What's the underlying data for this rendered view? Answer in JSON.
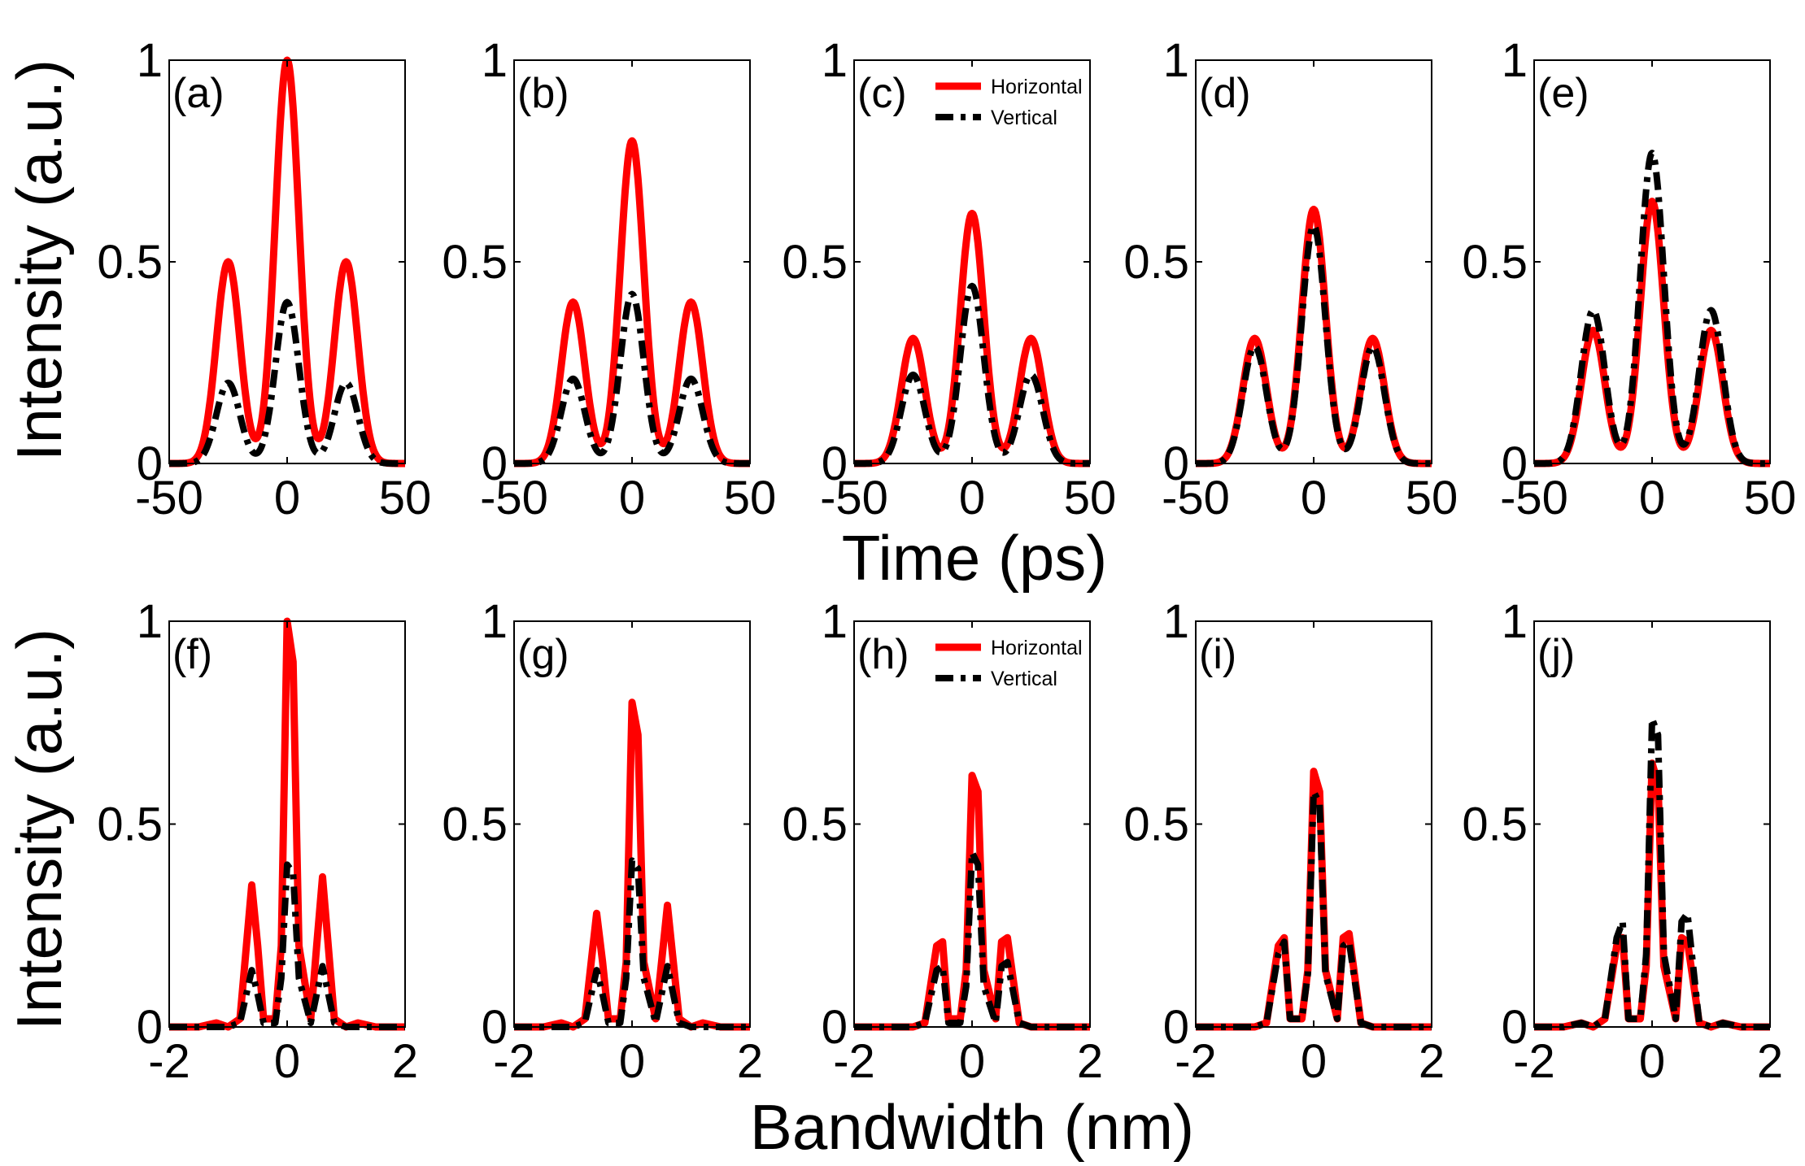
{
  "figure": {
    "ylabel": "Intensity (a.u.)",
    "xlabel_top": "Time (ps)",
    "xlabel_bottom": "Bandwidth (nm)",
    "legend": {
      "horizontal": "Horizontal",
      "vertical": "Vertical"
    },
    "colors": {
      "horizontal": "#ff0000",
      "vertical": "#000000"
    }
  },
  "chart_data": [
    {
      "type": "line",
      "panel": "(a)",
      "row": "top",
      "xlim": [
        -50,
        50
      ],
      "ylim": [
        0,
        1
      ],
      "xticks": [
        -50,
        0,
        50
      ],
      "yticks": [
        0,
        0.5,
        1
      ],
      "peaks_x": [
        -25,
        0,
        25
      ],
      "peak_width": 5,
      "series": [
        {
          "name": "Horizontal",
          "peak_values": [
            0.5,
            1.0,
            0.5
          ]
        },
        {
          "name": "Vertical",
          "peak_values": [
            0.2,
            0.4,
            0.2
          ]
        }
      ]
    },
    {
      "type": "line",
      "panel": "(b)",
      "row": "top",
      "xlim": [
        -50,
        50
      ],
      "ylim": [
        0,
        1
      ],
      "xticks": [
        -50,
        0,
        50
      ],
      "yticks": [
        0,
        0.5,
        1
      ],
      "peaks_x": [
        -25,
        0,
        25
      ],
      "peak_width": 5,
      "series": [
        {
          "name": "Horizontal",
          "peak_values": [
            0.4,
            0.8,
            0.4
          ]
        },
        {
          "name": "Vertical",
          "peak_values": [
            0.21,
            0.42,
            0.21
          ]
        }
      ]
    },
    {
      "type": "line",
      "panel": "(c)",
      "row": "top",
      "legend": true,
      "xlim": [
        -50,
        50
      ],
      "ylim": [
        0,
        1
      ],
      "xticks": [
        -50,
        0,
        50
      ],
      "yticks": [
        0,
        0.5,
        1
      ],
      "peaks_x": [
        -25,
        0,
        25
      ],
      "peak_width": 5,
      "series": [
        {
          "name": "Horizontal",
          "peak_values": [
            0.31,
            0.62,
            0.31
          ]
        },
        {
          "name": "Vertical",
          "peak_values": [
            0.22,
            0.44,
            0.22
          ]
        }
      ]
    },
    {
      "type": "line",
      "panel": "(d)",
      "row": "top",
      "xlim": [
        -50,
        50
      ],
      "ylim": [
        0,
        1
      ],
      "xticks": [
        -50,
        0,
        50
      ],
      "yticks": [
        0,
        0.5,
        1
      ],
      "peaks_x": [
        -25,
        0,
        25
      ],
      "peak_width": 5,
      "series": [
        {
          "name": "Horizontal",
          "peak_values": [
            0.31,
            0.63,
            0.31
          ]
        },
        {
          "name": "Vertical",
          "peak_values": [
            0.29,
            0.59,
            0.29
          ]
        }
      ]
    },
    {
      "type": "line",
      "panel": "(e)",
      "row": "top",
      "xlim": [
        -50,
        50
      ],
      "ylim": [
        0,
        1
      ],
      "xticks": [
        -50,
        0,
        50
      ],
      "yticks": [
        0,
        0.5,
        1
      ],
      "peaks_x": [
        -25,
        0,
        25
      ],
      "peak_width": 5,
      "series": [
        {
          "name": "Horizontal",
          "peak_values": [
            0.33,
            0.65,
            0.33
          ]
        },
        {
          "name": "Vertical",
          "peak_values": [
            0.38,
            0.77,
            0.38
          ]
        }
      ]
    },
    {
      "type": "line",
      "panel": "(f)",
      "row": "bottom",
      "xlim": [
        -2,
        2
      ],
      "ylim": [
        0,
        1
      ],
      "xticks": [
        -2,
        0,
        2
      ],
      "yticks": [
        0,
        0.5,
        1
      ],
      "x": [
        -2,
        -1.5,
        -1.2,
        -1.0,
        -0.8,
        -0.6,
        -0.5,
        -0.4,
        -0.2,
        -0.1,
        0,
        0.1,
        0.2,
        0.4,
        0.5,
        0.6,
        0.8,
        1.0,
        1.2,
        1.5,
        2
      ],
      "series": [
        {
          "name": "Horizontal",
          "values": [
            0,
            0,
            0.01,
            0,
            0.02,
            0.35,
            0.2,
            0.02,
            0.02,
            0.2,
            1.0,
            0.9,
            0.2,
            0.02,
            0.2,
            0.37,
            0.02,
            0,
            0.01,
            0,
            0
          ]
        },
        {
          "name": "Vertical",
          "values": [
            0,
            0,
            0,
            0,
            0.01,
            0.14,
            0.08,
            0.01,
            0.01,
            0.12,
            0.4,
            0.38,
            0.12,
            0.01,
            0.08,
            0.15,
            0.01,
            0,
            0,
            0,
            0
          ]
        }
      ]
    },
    {
      "type": "line",
      "panel": "(g)",
      "row": "bottom",
      "xlim": [
        -2,
        2
      ],
      "ylim": [
        0,
        1
      ],
      "xticks": [
        -2,
        0,
        2
      ],
      "yticks": [
        0,
        0.5,
        1
      ],
      "x": [
        -2,
        -1.5,
        -1.2,
        -1.0,
        -0.8,
        -0.6,
        -0.5,
        -0.4,
        -0.2,
        -0.1,
        0,
        0.1,
        0.2,
        0.4,
        0.5,
        0.6,
        0.8,
        1.0,
        1.2,
        1.5,
        2
      ],
      "series": [
        {
          "name": "Horizontal",
          "values": [
            0,
            0,
            0.01,
            0,
            0.02,
            0.28,
            0.16,
            0.02,
            0.02,
            0.16,
            0.8,
            0.72,
            0.16,
            0.02,
            0.16,
            0.3,
            0.02,
            0,
            0.01,
            0,
            0
          ]
        },
        {
          "name": "Vertical",
          "values": [
            0,
            0,
            0,
            0,
            0.01,
            0.14,
            0.08,
            0.01,
            0.01,
            0.12,
            0.41,
            0.39,
            0.12,
            0.01,
            0.08,
            0.15,
            0.01,
            0,
            0,
            0,
            0
          ]
        }
      ]
    },
    {
      "type": "line",
      "panel": "(h)",
      "row": "bottom",
      "legend": true,
      "xlim": [
        -2,
        2
      ],
      "ylim": [
        0,
        1
      ],
      "xticks": [
        -2,
        0,
        2
      ],
      "yticks": [
        0,
        0.5,
        1
      ],
      "x": [
        -2,
        -1.5,
        -1.2,
        -1.0,
        -0.8,
        -0.6,
        -0.5,
        -0.4,
        -0.2,
        -0.1,
        0,
        0.1,
        0.2,
        0.4,
        0.5,
        0.6,
        0.8,
        1.0,
        1.2,
        1.5,
        2
      ],
      "series": [
        {
          "name": "Horizontal",
          "values": [
            0,
            0,
            0,
            0,
            0.01,
            0.2,
            0.21,
            0.02,
            0.02,
            0.14,
            0.62,
            0.58,
            0.14,
            0.02,
            0.21,
            0.22,
            0.01,
            0,
            0,
            0,
            0
          ]
        },
        {
          "name": "Vertical",
          "values": [
            0,
            0,
            0,
            0,
            0.01,
            0.14,
            0.15,
            0.01,
            0.01,
            0.1,
            0.43,
            0.4,
            0.1,
            0.01,
            0.15,
            0.16,
            0.01,
            0,
            0,
            0,
            0
          ]
        }
      ]
    },
    {
      "type": "line",
      "panel": "(i)",
      "row": "bottom",
      "xlim": [
        -2,
        2
      ],
      "ylim": [
        0,
        1
      ],
      "xticks": [
        -2,
        0,
        2
      ],
      "yticks": [
        0,
        0.5,
        1
      ],
      "x": [
        -2,
        -1.5,
        -1.2,
        -1.0,
        -0.8,
        -0.6,
        -0.5,
        -0.4,
        -0.2,
        -0.1,
        0,
        0.1,
        0.2,
        0.4,
        0.5,
        0.6,
        0.8,
        1.0,
        1.2,
        1.5,
        2
      ],
      "series": [
        {
          "name": "Horizontal",
          "values": [
            0,
            0,
            0,
            0,
            0.01,
            0.2,
            0.22,
            0.02,
            0.02,
            0.14,
            0.63,
            0.58,
            0.14,
            0.02,
            0.22,
            0.23,
            0.01,
            0,
            0,
            0,
            0
          ]
        },
        {
          "name": "Vertical",
          "values": [
            0,
            0,
            0,
            0,
            0.01,
            0.18,
            0.21,
            0.02,
            0.02,
            0.13,
            0.58,
            0.55,
            0.13,
            0.02,
            0.2,
            0.21,
            0.01,
            0,
            0,
            0,
            0
          ]
        }
      ]
    },
    {
      "type": "line",
      "panel": "(j)",
      "row": "bottom",
      "xlim": [
        -2,
        2
      ],
      "ylim": [
        0,
        1
      ],
      "xticks": [
        -2,
        0,
        2
      ],
      "yticks": [
        0,
        0.5,
        1
      ],
      "x": [
        -2,
        -1.5,
        -1.2,
        -1.0,
        -0.8,
        -0.6,
        -0.5,
        -0.4,
        -0.2,
        -0.1,
        0,
        0.1,
        0.2,
        0.4,
        0.5,
        0.6,
        0.8,
        1.0,
        1.2,
        1.5,
        2
      ],
      "series": [
        {
          "name": "Horizontal",
          "values": [
            0,
            0,
            0.01,
            0,
            0.02,
            0.2,
            0.22,
            0.02,
            0.02,
            0.15,
            0.65,
            0.6,
            0.15,
            0.02,
            0.22,
            0.21,
            0.01,
            0,
            0.01,
            0,
            0
          ]
        },
        {
          "name": "Vertical",
          "values": [
            0,
            0,
            0.01,
            0,
            0.02,
            0.22,
            0.26,
            0.02,
            0.02,
            0.18,
            0.76,
            0.72,
            0.18,
            0.02,
            0.26,
            0.28,
            0.01,
            0,
            0.01,
            0,
            0
          ]
        }
      ]
    }
  ]
}
